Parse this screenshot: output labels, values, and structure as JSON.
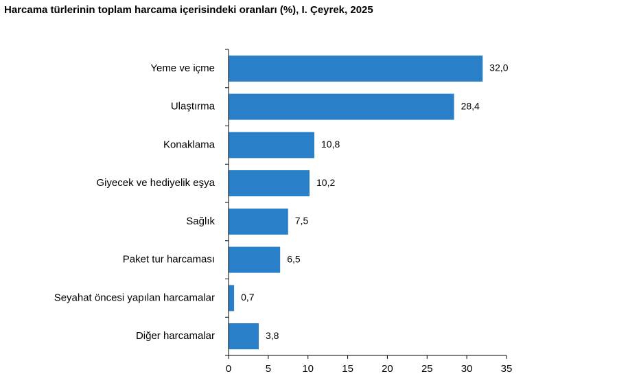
{
  "title": "Harcama türlerinin toplam harcama içerisindeki oranları (%), I. Çeyrek, 2025",
  "chart_data": {
    "type": "bar",
    "orientation": "horizontal",
    "title": "Harcama türlerinin toplam harcama içerisindeki oranları (%), I. Çeyrek, 2025",
    "categories": [
      "Yeme ve içme",
      "Ulaştırma",
      "Konaklama",
      "Giyecek ve hediyelik eşya",
      "Sağlık",
      "Paket tur harcaması",
      "Seyahat öncesi yapılan harcamalar",
      "Diğer harcamalar"
    ],
    "values": [
      32.0,
      28.4,
      10.8,
      10.2,
      7.5,
      6.5,
      0.7,
      3.8
    ],
    "value_labels": [
      "32,0",
      "28,4",
      "10,8",
      "10,2",
      "7,5",
      "6,5",
      "0,7",
      "3,8"
    ],
    "xlim": [
      0,
      35
    ],
    "xticks": [
      0,
      5,
      10,
      15,
      20,
      25,
      30,
      35
    ],
    "xtick_labels": [
      "0",
      "5",
      "10",
      "15",
      "20",
      "25",
      "30",
      "35"
    ],
    "bar_color": "#2a7fc9",
    "grid": false,
    "legend": "none"
  }
}
